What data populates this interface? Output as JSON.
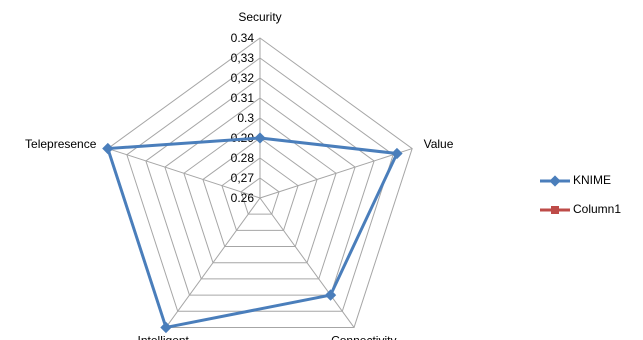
{
  "chart_data": {
    "type": "radar",
    "categories": [
      "Security",
      "Value",
      "Connectivity",
      "Intelligent",
      "Telepresence"
    ],
    "series": [
      {
        "name": "KNIME",
        "color": "#4a7ebb",
        "values": [
          0.29,
          0.332,
          0.32,
          0.34,
          0.34
        ]
      },
      {
        "name": "Column1",
        "color": "#be4b48",
        "values": [
          null,
          null,
          null,
          null,
          null
        ]
      }
    ],
    "ylim": [
      0.26,
      0.34
    ],
    "yticks": [
      0.26,
      {
        "value": 0.27,
        "label": "0,27"
      },
      0.28,
      0.29,
      0.3,
      0.31,
      {
        "value": 0.32,
        "label": "0,32"
      },
      {
        "value": 0.33,
        "label": "0,33"
      },
      0.34
    ],
    "grid": true,
    "legend": "right"
  }
}
